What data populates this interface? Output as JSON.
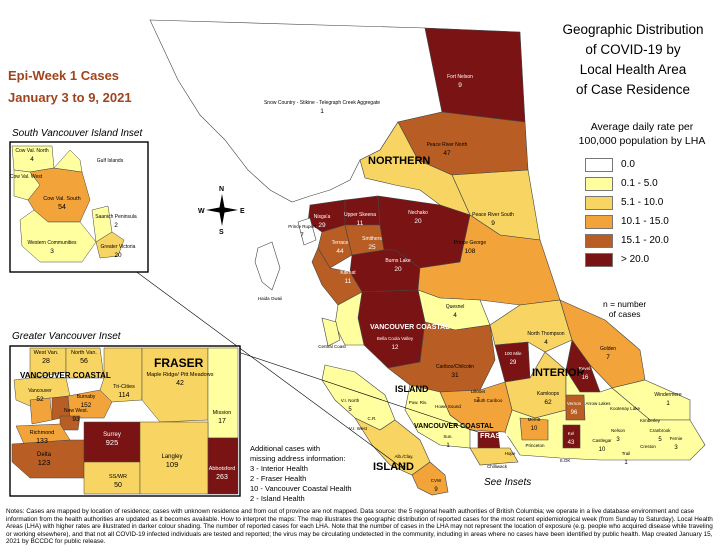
{
  "epi_week": {
    "line1": "Epi-Week 1 Cases",
    "line2": "January 3 to 9, 2021"
  },
  "title": [
    "Geographic Distribution",
    "of COVID-19 by",
    "Local Health Area",
    "of Case Residence"
  ],
  "legend": {
    "title": [
      "Average daily rate per",
      "100,000 population by LHA"
    ],
    "items": [
      {
        "label": "0.0",
        "color": "#ffffff"
      },
      {
        "label": "0.1 - 5.0",
        "color": "#ffffa0"
      },
      {
        "label": "5.1 - 10.0",
        "color": "#f8d462"
      },
      {
        "label": "10.1 - 15.0",
        "color": "#f2a33a"
      },
      {
        "label": "15.1 - 20.0",
        "color": "#b85e24"
      },
      {
        "label": "> 20.0",
        "color": "#7a1414"
      }
    ],
    "n_note": [
      "n = number",
      "of cases"
    ]
  },
  "insets": {
    "south_vi": {
      "title": "South Vancouver Island Inset"
    },
    "greater_van": {
      "title": "Greater Vancouver Inset"
    }
  },
  "additional": {
    "lines": [
      "Additional cases with",
      "missing address information:",
      "3 - Interior Health",
      "2 - Fraser Health",
      "10 - Vancouver Coastal Health",
      "2 - Island Health"
    ]
  },
  "see_insets": "See Insets",
  "notes": "Notes: Cases are mapped by location of residence; cases with unknown residence and from out of province are not mapped. Data source: the 5 regional health authorities of British Columbia; we operate in a live database environment and case information from the health authorities are updated as it becomes available. How to interpret the maps: The map illustrates the geographic distribution of reported cases for the most recent epidemiological week (from Sunday to Saturday). Local Health Areas (LHA) with higher rates are illustrated in darker colour shading. The number of reported cases for each LHA. Note that the number of cases in the LHA may not represent the location of exposure (e.g. people who acquired disease while traveling or working elsewhere), and that not all COVID-19 infected individuals are tested and reported; the virus may be circulating undetected in the community, including in areas where no cases have been identified by public health. Map created January 15, 2021 by BCCDC for public release.",
  "compass": {
    "n": "N",
    "s": "S",
    "e": "E",
    "w": "W"
  },
  "regions": {
    "northern": "NORTHERN",
    "interior": "INTERIOR",
    "island": "ISLAND",
    "island2": "ISLAND",
    "vancouver_coastal": "VANCOUVER COASTAL",
    "vancouver_coastal2": "VANCOUVER COASTAL",
    "fraser": "FRASER",
    "fraser2": "FRASER"
  },
  "map_labels": [
    {
      "name": "Fort Nelson",
      "n": "9"
    },
    {
      "name": "Snow Country - Stikine - Telegraph Creek Aggregate",
      "n": "1"
    },
    {
      "name": "Peace River North",
      "n": "47"
    },
    {
      "name": "Peace River South",
      "n": "9"
    },
    {
      "name": "Nisga'a",
      "n": "29"
    },
    {
      "name": "Upper Skeena",
      "n": "11"
    },
    {
      "name": "Nechako",
      "n": "20"
    },
    {
      "name": "Terrace",
      "n": "44"
    },
    {
      "name": "Smithers",
      "n": "25"
    },
    {
      "name": "Prince Rupert",
      "n": "7"
    },
    {
      "name": "Burns Lake",
      "n": "20"
    },
    {
      "name": "Prince George",
      "n": "108"
    },
    {
      "name": "Kitimat",
      "n": "11"
    },
    {
      "name": "Haida Gwaii",
      "n": ""
    },
    {
      "name": "Quesnel",
      "n": "4"
    },
    {
      "name": "Central Coast",
      "n": ""
    },
    {
      "name": "Bella Coola Valley",
      "n": "12"
    },
    {
      "name": "Cariboo/Chilcotin",
      "n": "31"
    },
    {
      "name": "100 Mile",
      "n": "29"
    },
    {
      "name": "North Thompson",
      "n": "4"
    },
    {
      "name": "Golden",
      "n": "7"
    },
    {
      "name": "Revel.",
      "n": "16"
    },
    {
      "name": "Windermere",
      "n": "1"
    },
    {
      "name": "Kamloops",
      "n": "62"
    },
    {
      "name": "Lillooet",
      "n": "7"
    },
    {
      "name": "South Cariboo",
      "n": ""
    },
    {
      "name": "Arrow Lakes",
      "n": ""
    },
    {
      "name": "Kootenay Lake",
      "n": ""
    },
    {
      "name": "Kimberley",
      "n": ""
    },
    {
      "name": "Cranbrook",
      "n": "5"
    },
    {
      "name": "Fernie",
      "n": "3"
    },
    {
      "name": "Merritt",
      "n": "10"
    },
    {
      "name": "Vernon",
      "n": "96"
    },
    {
      "name": "Nelson",
      "n": "3"
    },
    {
      "name": "Castlegar",
      "n": "10"
    },
    {
      "name": "Trail",
      "n": "1"
    },
    {
      "name": "Creston",
      "n": ""
    },
    {
      "name": "S.OK",
      "n": ""
    },
    {
      "name": "Kel",
      "n": "43"
    },
    {
      "name": "Hope",
      "n": ""
    },
    {
      "name": "Chilliwack",
      "n": ""
    },
    {
      "name": "Princeton",
      "n": ""
    },
    {
      "name": "Howe Sound",
      "n": ""
    },
    {
      "name": "V.I. North",
      "n": "5"
    },
    {
      "name": "V.I. West",
      "n": ""
    },
    {
      "name": "Alb./Clay.",
      "n": "2"
    },
    {
      "name": "CVW",
      "n": "9"
    },
    {
      "name": "Sun.",
      "n": "1"
    },
    {
      "name": "Pow. Riv.",
      "n": ""
    },
    {
      "name": "C.R.",
      "n": ""
    }
  ],
  "svi_labels": [
    {
      "name": "Cow Val. North",
      "n": "4"
    },
    {
      "name": "Gulf Islands",
      "n": ""
    },
    {
      "name": "Cow Val. West",
      "n": ""
    },
    {
      "name": "Cow Val. South",
      "n": "54"
    },
    {
      "name": "Saanich Peninsula",
      "n": "2"
    },
    {
      "name": "Western Communities",
      "n": "3"
    },
    {
      "name": "Greater Victoria",
      "n": "20"
    }
  ],
  "gv_labels": [
    {
      "name": "West Van.",
      "n": "28"
    },
    {
      "name": "North Van.",
      "n": "56"
    },
    {
      "name": "Tri-Cities",
      "n": "114"
    },
    {
      "name": "Maple Ridge/ Pitt Meadows",
      "n": "42"
    },
    {
      "name": "Vancouver",
      "n": "52"
    },
    {
      "name": "Burnaby",
      "n": "152"
    },
    {
      "name": "New West.",
      "n": "93"
    },
    {
      "name": "Richmond",
      "n": "133"
    },
    {
      "name": "Mission",
      "n": "17"
    },
    {
      "name": "Surrey",
      "n": "925"
    },
    {
      "name": "Langley",
      "n": "109"
    },
    {
      "name": "Delta",
      "n": "123"
    },
    {
      "name": "SS/WR",
      "n": "50"
    },
    {
      "name": "Abbotsford",
      "n": "263"
    }
  ]
}
